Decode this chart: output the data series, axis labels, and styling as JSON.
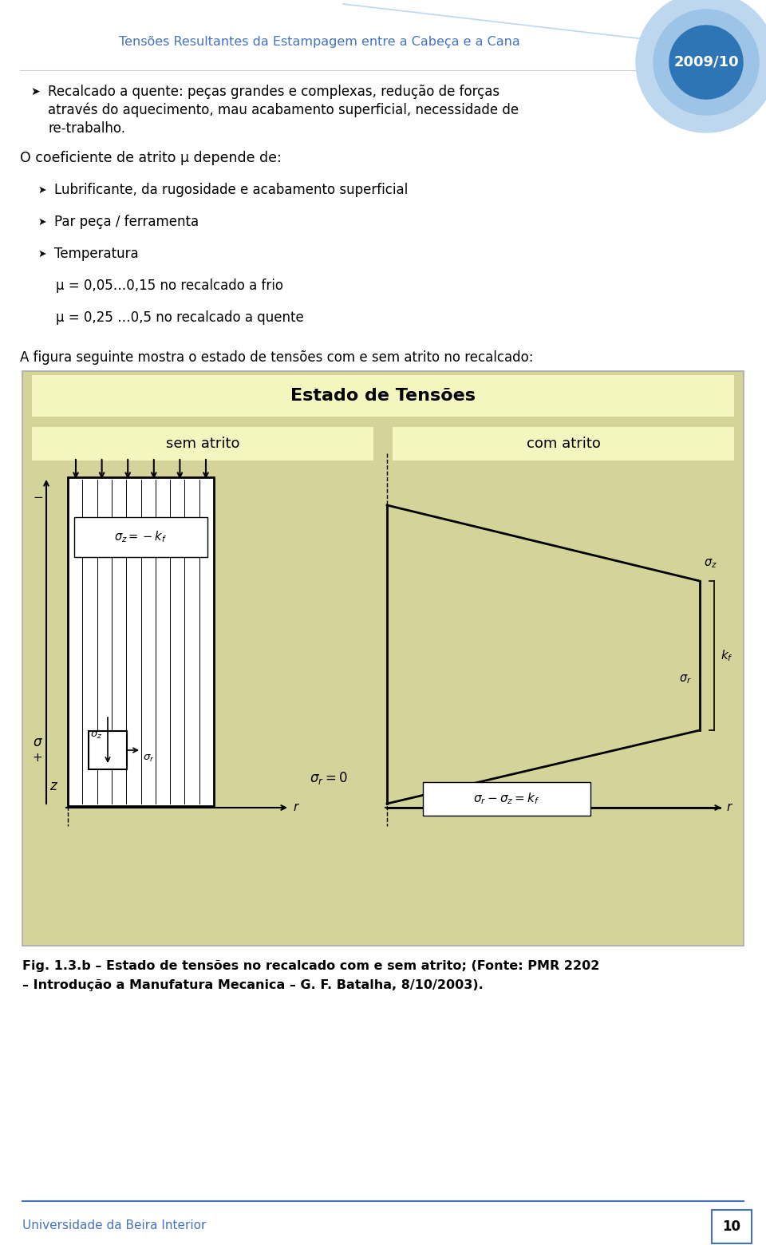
{
  "bg_color": "#ffffff",
  "header_title": "Tensões Resultantes da Estampagem entre a Cabeça e a Cana",
  "header_title_color": "#4472c4",
  "year_label": "2009/10",
  "year_color": "#ffffff",
  "circle_colors": [
    "#bdd7ee",
    "#9dc3e6",
    "#2e75b6"
  ],
  "bullet1_line1": "Recalcado a quente: peças grandes e complexas, redução de forças",
  "bullet1_line2": "através do aquecimento, mau acabamento superficial, necessidade de",
  "bullet1_line3": "re-trabalho.",
  "section_title": "O coeficiente de atrito μ depende de:",
  "bullet2": "Lubrificante, da rugosidade e acabamento superficial",
  "bullet3": "Par peça / ferramenta",
  "bullet4": "Temperatura",
  "mu1": "μ = 0,05…0,15 no recalcado a frio",
  "mu2": "μ = 0,25 …0,5 no recalcado a quente",
  "fig_intro": "A figura seguinte mostra o estado de tensões com e sem atrito no recalcado:",
  "fig_bg": "#d4d49a",
  "fig_title_bg": "#f5f5c0",
  "fig_title": "Estado de Tensões",
  "fig_left_title": "sem atrito",
  "fig_right_title": "com atrito",
  "caption_line1": "Fig. 1.3.b – Estado de tensões no recalcado com e sem atrito; (Fonte: PMR 2202",
  "caption_line2": "– Introdução a Manufatura Mecanica – G. F. Batalha, 8/10/2003).",
  "footer_text": "Universidade da Beira Interior",
  "footer_page": "10",
  "footer_color": "#4472c4"
}
